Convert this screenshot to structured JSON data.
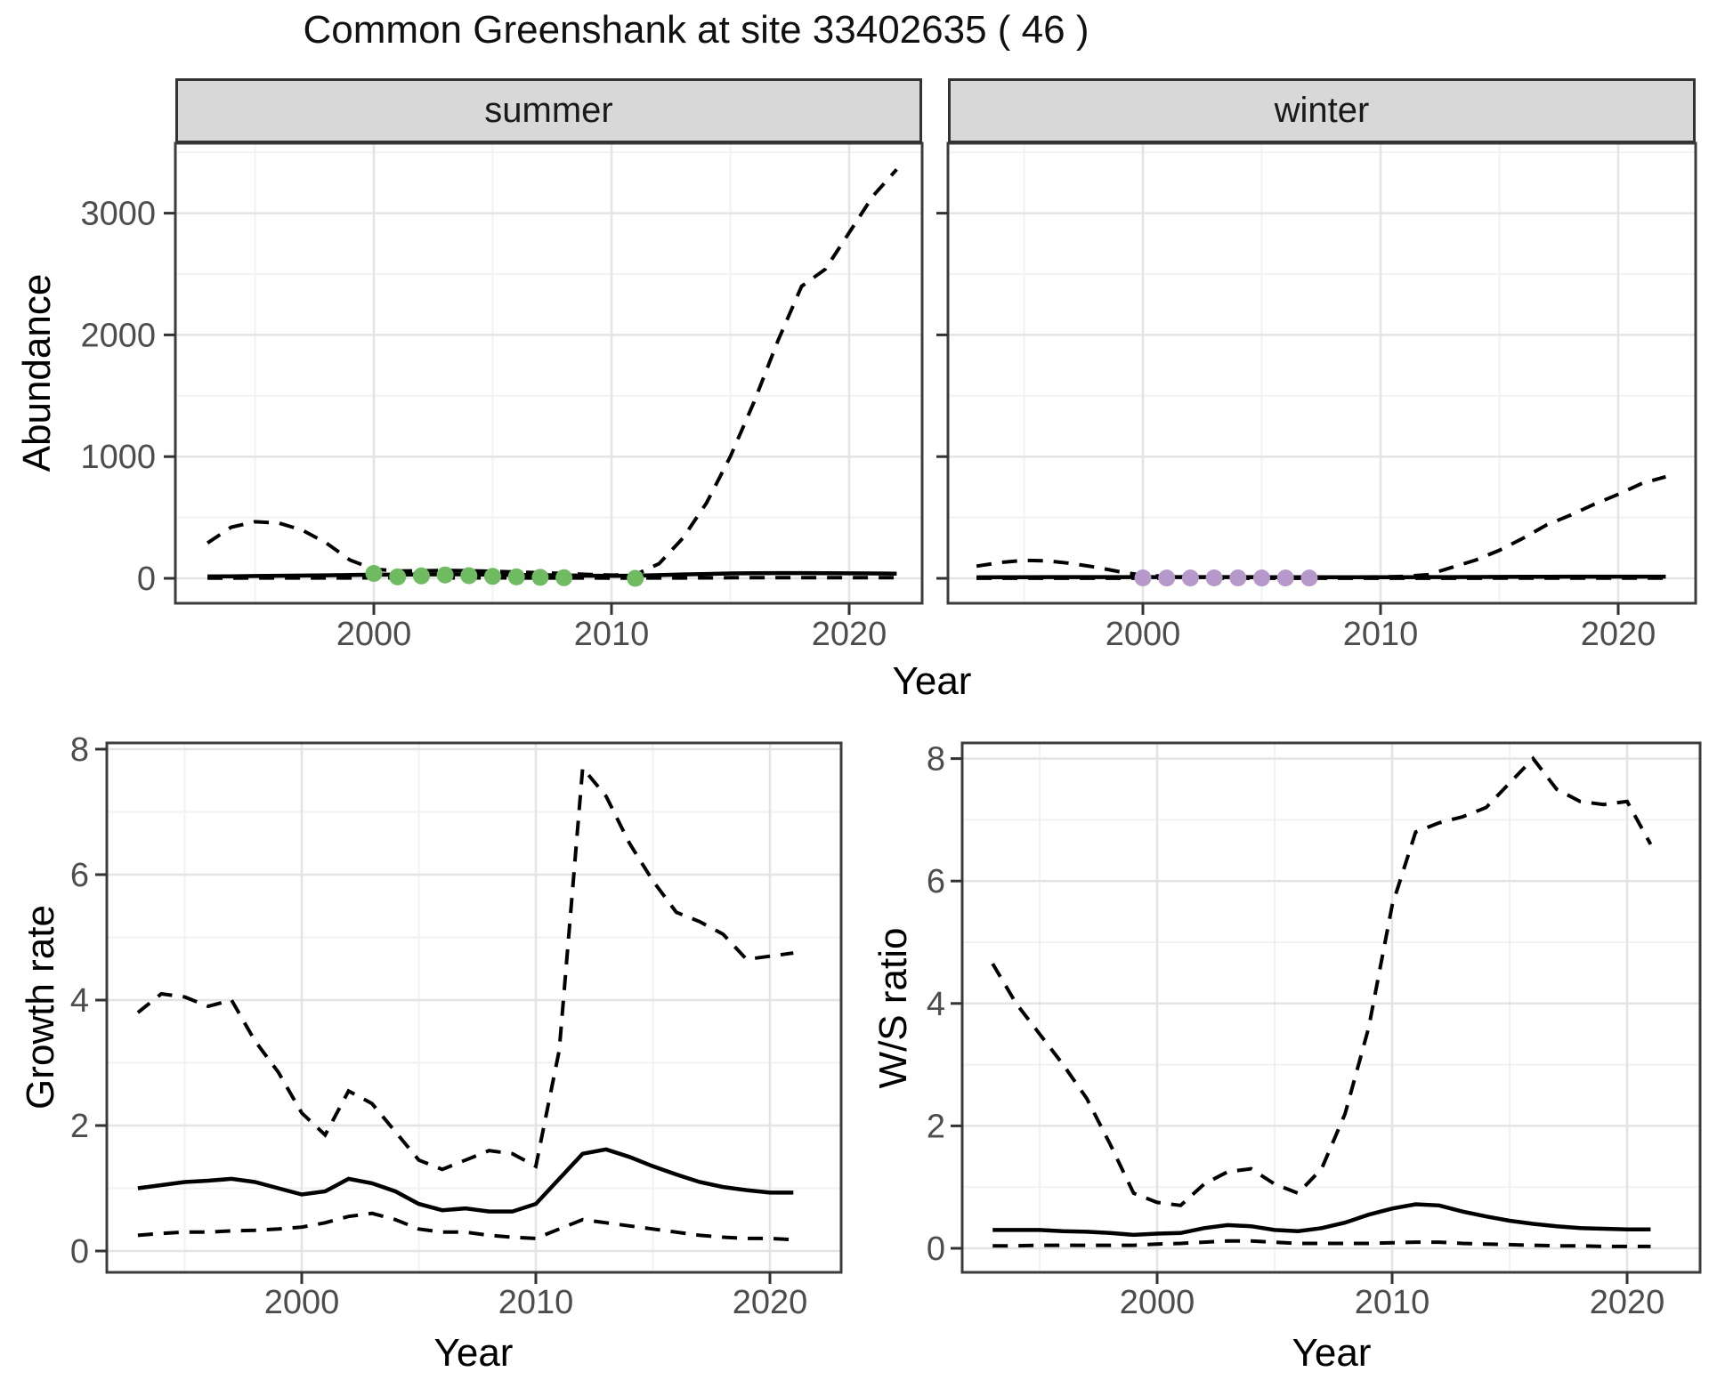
{
  "title": "Common Greenshank at site 33402635 ( 46 )",
  "colors": {
    "summer_points": "#6ebb60",
    "winter_points": "#b798ca",
    "line": "#000000",
    "grid_major": "#e4e4e4",
    "grid_minor": "#f2f2f2",
    "panel_border": "#3c3c3c",
    "tick_mark": "#333333",
    "tick_text": "#4d4d4d",
    "strip_bg": "#d8d8d8"
  },
  "top": {
    "ylabel": "Abundance",
    "xlabel": "Year",
    "facets": [
      {
        "label": "summer"
      },
      {
        "label": "winter"
      }
    ]
  },
  "bottom_left": {
    "ylabel": "Growth rate",
    "xlabel": "Year"
  },
  "bottom_right": {
    "ylabel": "W/S ratio",
    "xlabel": "Year"
  },
  "chart_data": [
    {
      "id": "abundance_summer",
      "type": "line",
      "facet": "summer",
      "xlabel": "Year",
      "ylabel": "Abundance",
      "x_ticks": [
        2000,
        2010,
        2020
      ],
      "x_minor": [
        1995,
        2005,
        2015
      ],
      "y_ticks": [
        0,
        1000,
        2000,
        3000
      ],
      "y_minor": [
        500,
        1500,
        2500,
        3500
      ],
      "xlim": [
        1991.6,
        2023.4
      ],
      "ylim": [
        -205,
        3560
      ],
      "grid": true,
      "years": [
        1993,
        1994,
        1995,
        1996,
        1997,
        1998,
        1999,
        2000,
        2001,
        2002,
        2003,
        2004,
        2005,
        2006,
        2007,
        2008,
        2009,
        2010,
        2011,
        2012,
        2013,
        2014,
        2015,
        2016,
        2017,
        2018,
        2019,
        2020,
        2021,
        2022
      ],
      "series": [
        {
          "name": "upper_95ci",
          "style": "dashed",
          "values": [
            290,
            420,
            465,
            455,
            395,
            290,
            150,
            75,
            60,
            62,
            65,
            62,
            58,
            52,
            46,
            40,
            32,
            26,
            30,
            120,
            330,
            620,
            1000,
            1450,
            1950,
            2400,
            2540,
            2840,
            3140,
            3360
          ]
        },
        {
          "name": "fitted",
          "style": "solid",
          "values": [
            15,
            17,
            19,
            21,
            23,
            25,
            27,
            30,
            30,
            32,
            33,
            32,
            30,
            28,
            26,
            24,
            22,
            20,
            22,
            26,
            32,
            36,
            40,
            42,
            43,
            43,
            42,
            41,
            40,
            39
          ]
        },
        {
          "name": "lower_95ci",
          "style": "dashed",
          "values": [
            2,
            2,
            3,
            3,
            3,
            3,
            3,
            4,
            4,
            4,
            4,
            4,
            4,
            3,
            3,
            3,
            3,
            2,
            2,
            3,
            3,
            4,
            5,
            5,
            6,
            6,
            6,
            6,
            6,
            6
          ]
        }
      ],
      "points": {
        "name": "observed_counts_summer",
        "color_key": "summer_points",
        "years": [
          2000,
          2001,
          2002,
          2003,
          2004,
          2005,
          2006,
          2007,
          2008,
          2011
        ],
        "values": [
          40,
          12,
          20,
          28,
          22,
          16,
          12,
          8,
          5,
          0
        ]
      }
    },
    {
      "id": "abundance_winter",
      "type": "line",
      "facet": "winter",
      "xlabel": "Year",
      "ylabel": "Abundance",
      "x_ticks": [
        2000,
        2010,
        2020
      ],
      "x_minor": [
        1995,
        2005,
        2015
      ],
      "y_ticks": [
        0,
        1000,
        2000,
        3000
      ],
      "y_minor": [
        500,
        1500,
        2500,
        3500
      ],
      "xlim": [
        1991.8,
        2023.3
      ],
      "ylim": [
        -205,
        3560
      ],
      "grid": true,
      "years": [
        1993,
        1994,
        1995,
        1996,
        1997,
        1998,
        1999,
        2000,
        2001,
        2002,
        2003,
        2004,
        2005,
        2006,
        2007,
        2008,
        2009,
        2010,
        2011,
        2012,
        2013,
        2014,
        2015,
        2016,
        2017,
        2018,
        2019,
        2020,
        2021,
        2022
      ],
      "series": [
        {
          "name": "upper_95ci",
          "style": "dashed",
          "values": [
            100,
            130,
            148,
            143,
            122,
            92,
            55,
            25,
            16,
            12,
            10,
            9,
            8,
            8,
            8,
            9,
            10,
            12,
            16,
            30,
            90,
            150,
            230,
            330,
            440,
            520,
            610,
            690,
            780,
            835
          ]
        },
        {
          "name": "fitted",
          "style": "solid",
          "values": [
            8,
            9,
            9,
            10,
            10,
            10,
            10,
            10,
            10,
            10,
            10,
            10,
            9,
            9,
            9,
            9,
            9,
            9,
            9,
            10,
            10,
            11,
            12,
            13,
            13,
            14,
            14,
            14,
            14,
            14
          ]
        },
        {
          "name": "lower_95ci",
          "style": "dashed",
          "values": [
            1,
            1,
            1,
            1,
            1,
            1,
            1,
            1,
            1,
            1,
            1,
            1,
            1,
            1,
            1,
            1,
            1,
            1,
            1,
            1,
            1,
            1,
            2,
            2,
            2,
            2,
            2,
            2,
            2,
            2
          ]
        }
      ],
      "points": {
        "name": "observed_counts_winter",
        "color_key": "winter_points",
        "years": [
          2000,
          2001,
          2002,
          2003,
          2004,
          2005,
          2006,
          2007
        ],
        "values": [
          4,
          3,
          3,
          4,
          4,
          3,
          3,
          3
        ]
      }
    },
    {
      "id": "growth_rate",
      "type": "line",
      "facet": null,
      "xlabel": "Year",
      "ylabel": "Growth rate",
      "x_ticks": [
        2000,
        2010,
        2020
      ],
      "x_minor": [
        1995,
        2005,
        2015
      ],
      "y_ticks": [
        0,
        2,
        4,
        6,
        8
      ],
      "y_minor": [
        1,
        3,
        5,
        7
      ],
      "xlim": [
        1991.7,
        2023.0
      ],
      "ylim": [
        -0.42,
        8.12
      ],
      "grid": true,
      "years": [
        1993,
        1994,
        1995,
        1996,
        1997,
        1998,
        1999,
        2000,
        2001,
        2002,
        2003,
        2004,
        2005,
        2006,
        2007,
        2008,
        2009,
        2010,
        2011,
        2012,
        2013,
        2014,
        2015,
        2016,
        2017,
        2018,
        2019,
        2020,
        2021
      ],
      "series": [
        {
          "name": "upper_95ci",
          "style": "dashed",
          "values": [
            3.8,
            4.1,
            4.05,
            3.9,
            4.0,
            3.35,
            2.85,
            2.2,
            1.85,
            2.55,
            2.35,
            1.9,
            1.45,
            1.3,
            1.45,
            1.6,
            1.55,
            1.35,
            3.2,
            7.7,
            7.25,
            6.5,
            5.9,
            5.4,
            5.25,
            5.05,
            4.65,
            4.7,
            4.75
          ]
        },
        {
          "name": "fitted",
          "style": "solid",
          "values": [
            1.0,
            1.05,
            1.1,
            1.12,
            1.15,
            1.1,
            1.0,
            0.9,
            0.95,
            1.15,
            1.08,
            0.95,
            0.75,
            0.65,
            0.68,
            0.63,
            0.63,
            0.75,
            1.15,
            1.55,
            1.62,
            1.5,
            1.35,
            1.22,
            1.1,
            1.02,
            0.97,
            0.93,
            0.93
          ]
        },
        {
          "name": "lower_95ci",
          "style": "dashed",
          "values": [
            0.25,
            0.28,
            0.3,
            0.3,
            0.32,
            0.33,
            0.35,
            0.38,
            0.45,
            0.55,
            0.6,
            0.5,
            0.35,
            0.3,
            0.3,
            0.25,
            0.22,
            0.2,
            0.35,
            0.5,
            0.45,
            0.4,
            0.35,
            0.3,
            0.25,
            0.22,
            0.2,
            0.2,
            0.18
          ]
        }
      ],
      "points": null
    },
    {
      "id": "ws_ratio",
      "type": "line",
      "facet": null,
      "xlabel": "Year",
      "ylabel": "W/S ratio",
      "x_ticks": [
        2000,
        2010,
        2020
      ],
      "x_minor": [
        1995,
        2005,
        2015
      ],
      "y_ticks": [
        0,
        2,
        4,
        6,
        8
      ],
      "y_minor": [
        1,
        3,
        5,
        7
      ],
      "xlim": [
        1991.7,
        2023.1
      ],
      "ylim": [
        -0.47,
        8.25
      ],
      "grid": true,
      "years": [
        1993,
        1994,
        1995,
        1996,
        1997,
        1998,
        1999,
        2000,
        2001,
        2002,
        2003,
        2004,
        2005,
        2006,
        2007,
        2008,
        2009,
        2010,
        2011,
        2012,
        2013,
        2014,
        2015,
        2016,
        2017,
        2018,
        2019,
        2020,
        2021
      ],
      "series": [
        {
          "name": "upper_95ci",
          "style": "dashed",
          "values": [
            4.65,
            4.0,
            3.5,
            3.0,
            2.45,
            1.7,
            0.9,
            0.75,
            0.7,
            1.05,
            1.25,
            1.3,
            1.05,
            0.9,
            1.3,
            2.2,
            3.6,
            5.6,
            6.8,
            6.95,
            7.05,
            7.2,
            7.6,
            8.0,
            7.5,
            7.3,
            7.25,
            7.3,
            6.6
          ]
        },
        {
          "name": "fitted",
          "style": "solid",
          "values": [
            0.3,
            0.3,
            0.3,
            0.28,
            0.27,
            0.25,
            0.22,
            0.24,
            0.25,
            0.33,
            0.38,
            0.36,
            0.3,
            0.28,
            0.33,
            0.42,
            0.55,
            0.65,
            0.72,
            0.7,
            0.6,
            0.52,
            0.45,
            0.4,
            0.36,
            0.33,
            0.32,
            0.31,
            0.31
          ]
        },
        {
          "name": "lower_95ci",
          "style": "dashed",
          "values": [
            0.04,
            0.04,
            0.05,
            0.05,
            0.05,
            0.05,
            0.05,
            0.07,
            0.08,
            0.1,
            0.12,
            0.12,
            0.1,
            0.08,
            0.08,
            0.08,
            0.08,
            0.09,
            0.1,
            0.1,
            0.08,
            0.07,
            0.06,
            0.05,
            0.04,
            0.04,
            0.03,
            0.03,
            0.03
          ]
        }
      ],
      "points": null
    }
  ]
}
